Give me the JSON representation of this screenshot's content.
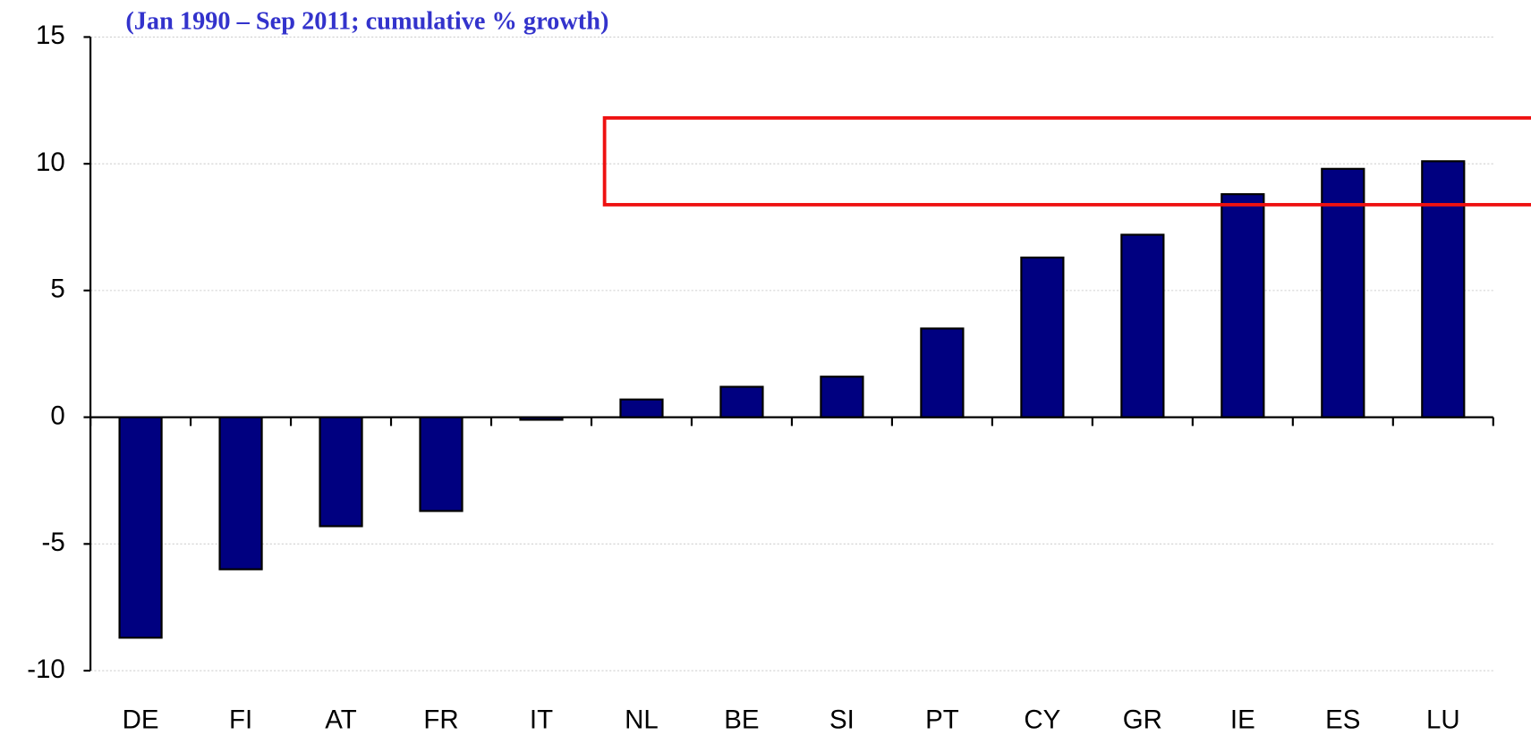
{
  "chart_data": {
    "type": "bar",
    "subtitle": "(Jan 1990 – Sep 2011; cumulative % growth)",
    "categories": [
      "DE",
      "FI",
      "AT",
      "FR",
      "IT",
      "NL",
      "BE",
      "SI",
      "PT",
      "CY",
      "GR",
      "IE",
      "ES",
      "LU"
    ],
    "values": [
      -8.7,
      -6.0,
      -4.3,
      -3.7,
      -0.1,
      0.7,
      1.2,
      1.6,
      3.5,
      6.3,
      7.2,
      8.8,
      9.8,
      10.1
    ],
    "color": "#000080",
    "ylim": [
      -10,
      15
    ],
    "yticks": [
      -10,
      -5,
      0,
      5,
      10,
      15
    ],
    "grid": true
  }
}
